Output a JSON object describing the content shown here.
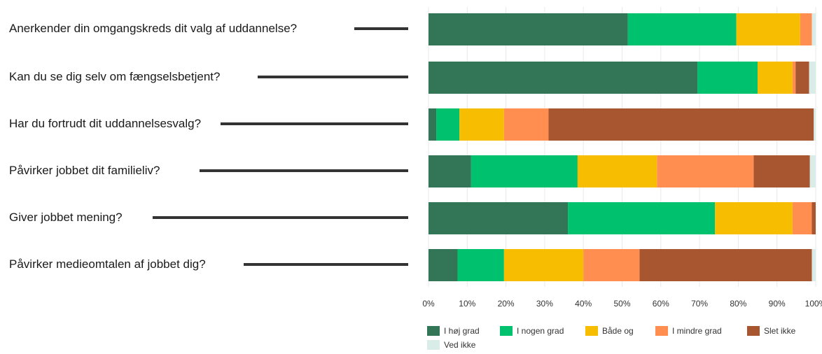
{
  "chart_data": {
    "type": "bar",
    "orientation": "horizontal",
    "stacked": true,
    "categories": [
      "Anerkender din omgangskreds dit valg af uddannelse?",
      "Kan du se dig selv om fængselsbetjent?",
      "Har du fortrudt dit uddannelsesvalg?",
      "Påvirker jobbet dit familieliv?",
      "Giver jobbet mening?",
      "Påvirker medieomtalen af jobbet dig?"
    ],
    "series": [
      {
        "name": "I høj grad",
        "color": "#327557",
        "values": [
          51.5,
          69.5,
          2,
          11,
          36,
          7.5
        ]
      },
      {
        "name": "I nogen grad",
        "color": "#00c16e",
        "values": [
          28,
          15.5,
          6,
          27.5,
          38,
          12
        ]
      },
      {
        "name": "Både og",
        "color": "#f7bd00",
        "values": [
          16.5,
          9,
          11.5,
          20.5,
          20,
          20.5
        ]
      },
      {
        "name": "I mindre grad",
        "color": "#ff8e50",
        "values": [
          3,
          0.8,
          11.5,
          25,
          5,
          14.5
        ]
      },
      {
        "name": "Slet ikke",
        "color": "#a8562f",
        "values": [
          0,
          3.5,
          68.5,
          14.5,
          1,
          44.5
        ]
      },
      {
        "name": "Ved ikke",
        "color": "#d9ece8",
        "values": [
          1,
          1.7,
          0.5,
          1.5,
          0,
          1
        ]
      }
    ],
    "xticks": [
      "0%",
      "10%",
      "20%",
      "30%",
      "40%",
      "50%",
      "60%",
      "70%",
      "80%",
      "90%",
      "100%"
    ],
    "xlim": [
      0,
      100
    ],
    "grid": true,
    "legend": "bottom"
  }
}
